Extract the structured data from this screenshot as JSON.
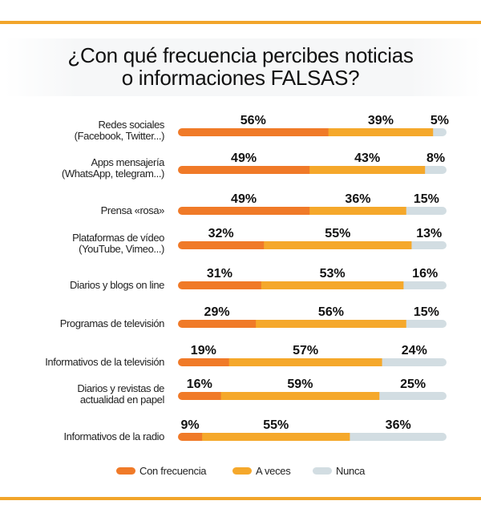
{
  "chart_data": {
    "type": "bar",
    "orientation": "horizontal",
    "stacked": true,
    "title": [
      "¿Con qué frecuencia percibes noticias",
      "o informaciones FALSAS?"
    ],
    "categories": [
      [
        "Redes sociales",
        "(Facebook, Twitter...)"
      ],
      [
        "Apps mensajería",
        "(WhatsApp, telegram...)"
      ],
      [
        "Prensa «rosa»"
      ],
      [
        "Plataformas de vídeo",
        "(YouTube, Vimeo...)"
      ],
      [
        "Diarios y blogs on line"
      ],
      [
        "Programas de televisión"
      ],
      [
        "Informativos de la televisión"
      ],
      [
        "Diarios y revistas de",
        "actualidad en papel"
      ],
      [
        "Informativos de la radio"
      ]
    ],
    "series": [
      {
        "name": "Con frecuencia",
        "color": "#f07a28",
        "values": [
          56,
          49,
          49,
          32,
          31,
          29,
          19,
          16,
          9
        ]
      },
      {
        "name": "A veces",
        "color": "#f5a82b",
        "values": [
          39,
          43,
          36,
          55,
          53,
          56,
          57,
          59,
          55
        ]
      },
      {
        "name": "Nunca",
        "color": "#d2dde2",
        "values": [
          5,
          8,
          15,
          13,
          16,
          15,
          24,
          25,
          36
        ]
      }
    ],
    "value_suffix": "%",
    "xlim": [
      0,
      100
    ],
    "grid": false,
    "legend_position": "bottom",
    "accent_color": "#f2a52a"
  }
}
